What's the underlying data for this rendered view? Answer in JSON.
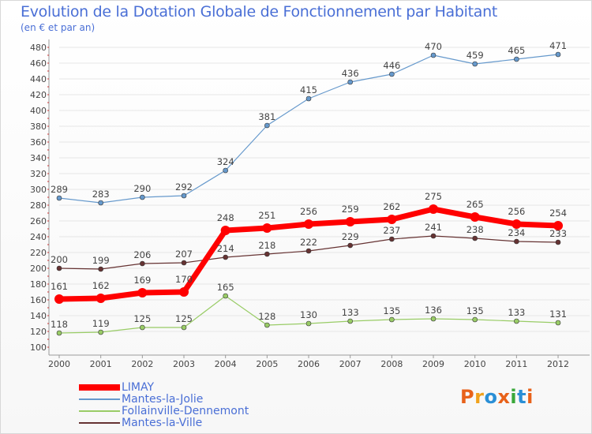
{
  "header": {
    "title": "Evolution de la Dotation Globale de Fonctionnement par Habitant",
    "subtitle": "(en € et par an)"
  },
  "logo": {
    "text": "Proxiti",
    "colors": [
      "#e8621a",
      "#f0a21c",
      "#2a8fd6",
      "#e8621a",
      "#3aa83a",
      "#2a8fd6",
      "#e8621a"
    ]
  },
  "chart_data": {
    "type": "line",
    "title": "Evolution de la Dotation Globale de Fonctionnement par Habitant",
    "subtitle": "(en € et par an)",
    "xlabel": "",
    "ylabel": "",
    "ylim": [
      100,
      480
    ],
    "ytick_step": 20,
    "grid": true,
    "legend_position": "bottom-left",
    "categories": [
      "2000",
      "2001",
      "2002",
      "2003",
      "2004",
      "2005",
      "2006",
      "2007",
      "2008",
      "2009",
      "2010",
      "2011",
      "2012"
    ],
    "series": [
      {
        "name": "LIMAY",
        "color": "#ff0000",
        "values": [
          161,
          162,
          169,
          170,
          248,
          251,
          256,
          259,
          262,
          275,
          265,
          256,
          254
        ]
      },
      {
        "name": "Mantes-la-Jolie",
        "color": "#6699cc",
        "values": [
          289,
          283,
          290,
          292,
          324,
          381,
          415,
          436,
          446,
          470,
          459,
          465,
          471
        ]
      },
      {
        "name": "Follainville-Dennemont",
        "color": "#99cc66",
        "values": [
          118,
          119,
          125,
          125,
          165,
          128,
          130,
          133,
          135,
          136,
          135,
          133,
          131
        ]
      },
      {
        "name": "Mantes-la-Ville",
        "color": "#663333",
        "values": [
          200,
          199,
          206,
          207,
          214,
          218,
          222,
          229,
          237,
          241,
          238,
          234,
          233
        ]
      }
    ]
  }
}
